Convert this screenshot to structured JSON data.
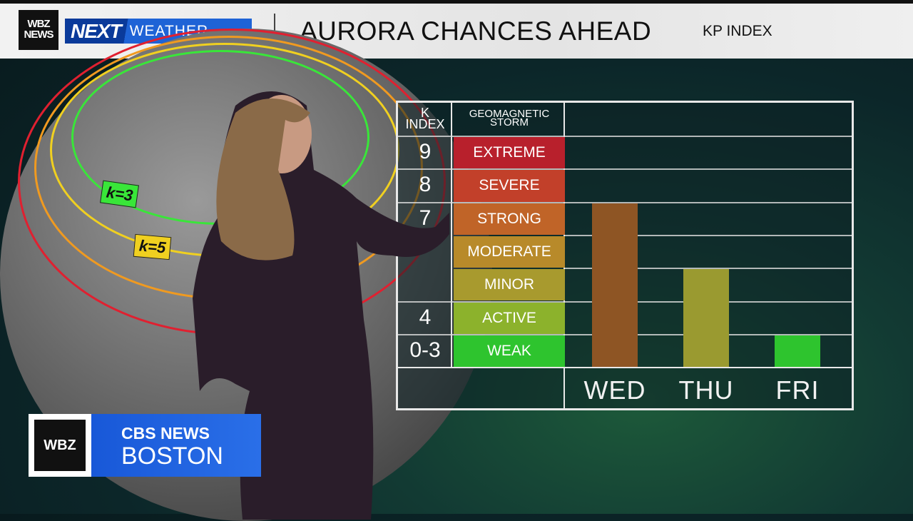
{
  "header": {
    "station_logo": "WBZ NEWS",
    "brand_next": "NEXT",
    "brand_weather": "WEATHER",
    "title": "AURORA CHANCES AHEAD",
    "subtitle": "KP INDEX"
  },
  "map": {
    "ring_labels": [
      "k=3",
      "k=5"
    ],
    "ring_colors": {
      "k3": "#39e639",
      "k5": "#f0d020",
      "k7": "#f09a20",
      "k9": "#e02030"
    }
  },
  "chart_data": {
    "type": "bar",
    "title": "AURORA CHANCES AHEAD",
    "subtitle": "KP INDEX",
    "column_headers": {
      "k": "K INDEX",
      "storm": "GEOMAGNETIC STORM"
    },
    "scale": [
      {
        "k": "9",
        "storm": "EXTREME",
        "color": "#b8202c"
      },
      {
        "k": "8",
        "storm": "SEVERE",
        "color": "#c2402a"
      },
      {
        "k": "7",
        "storm": "STRONG",
        "color": "#c06428"
      },
      {
        "k": "",
        "storm": "MODERATE",
        "color": "#b88a2a"
      },
      {
        "k": "",
        "storm": "MINOR",
        "color": "#a89a2e"
      },
      {
        "k": "4",
        "storm": "ACTIVE",
        "color": "#8cb22c"
      },
      {
        "k": "0-3",
        "storm": "WEAK",
        "color": "#2ec42e"
      }
    ],
    "categories": [
      "WED",
      "THU",
      "FRI"
    ],
    "values": [
      7,
      5,
      3
    ],
    "bar_colors": [
      "#8e5524",
      "#9a9a30",
      "#2ec42e"
    ],
    "ylim": [
      3,
      9
    ],
    "grid": true
  },
  "footer": {
    "wbz": "WBZ",
    "network": "CBS NEWS",
    "city": "BOSTON"
  }
}
